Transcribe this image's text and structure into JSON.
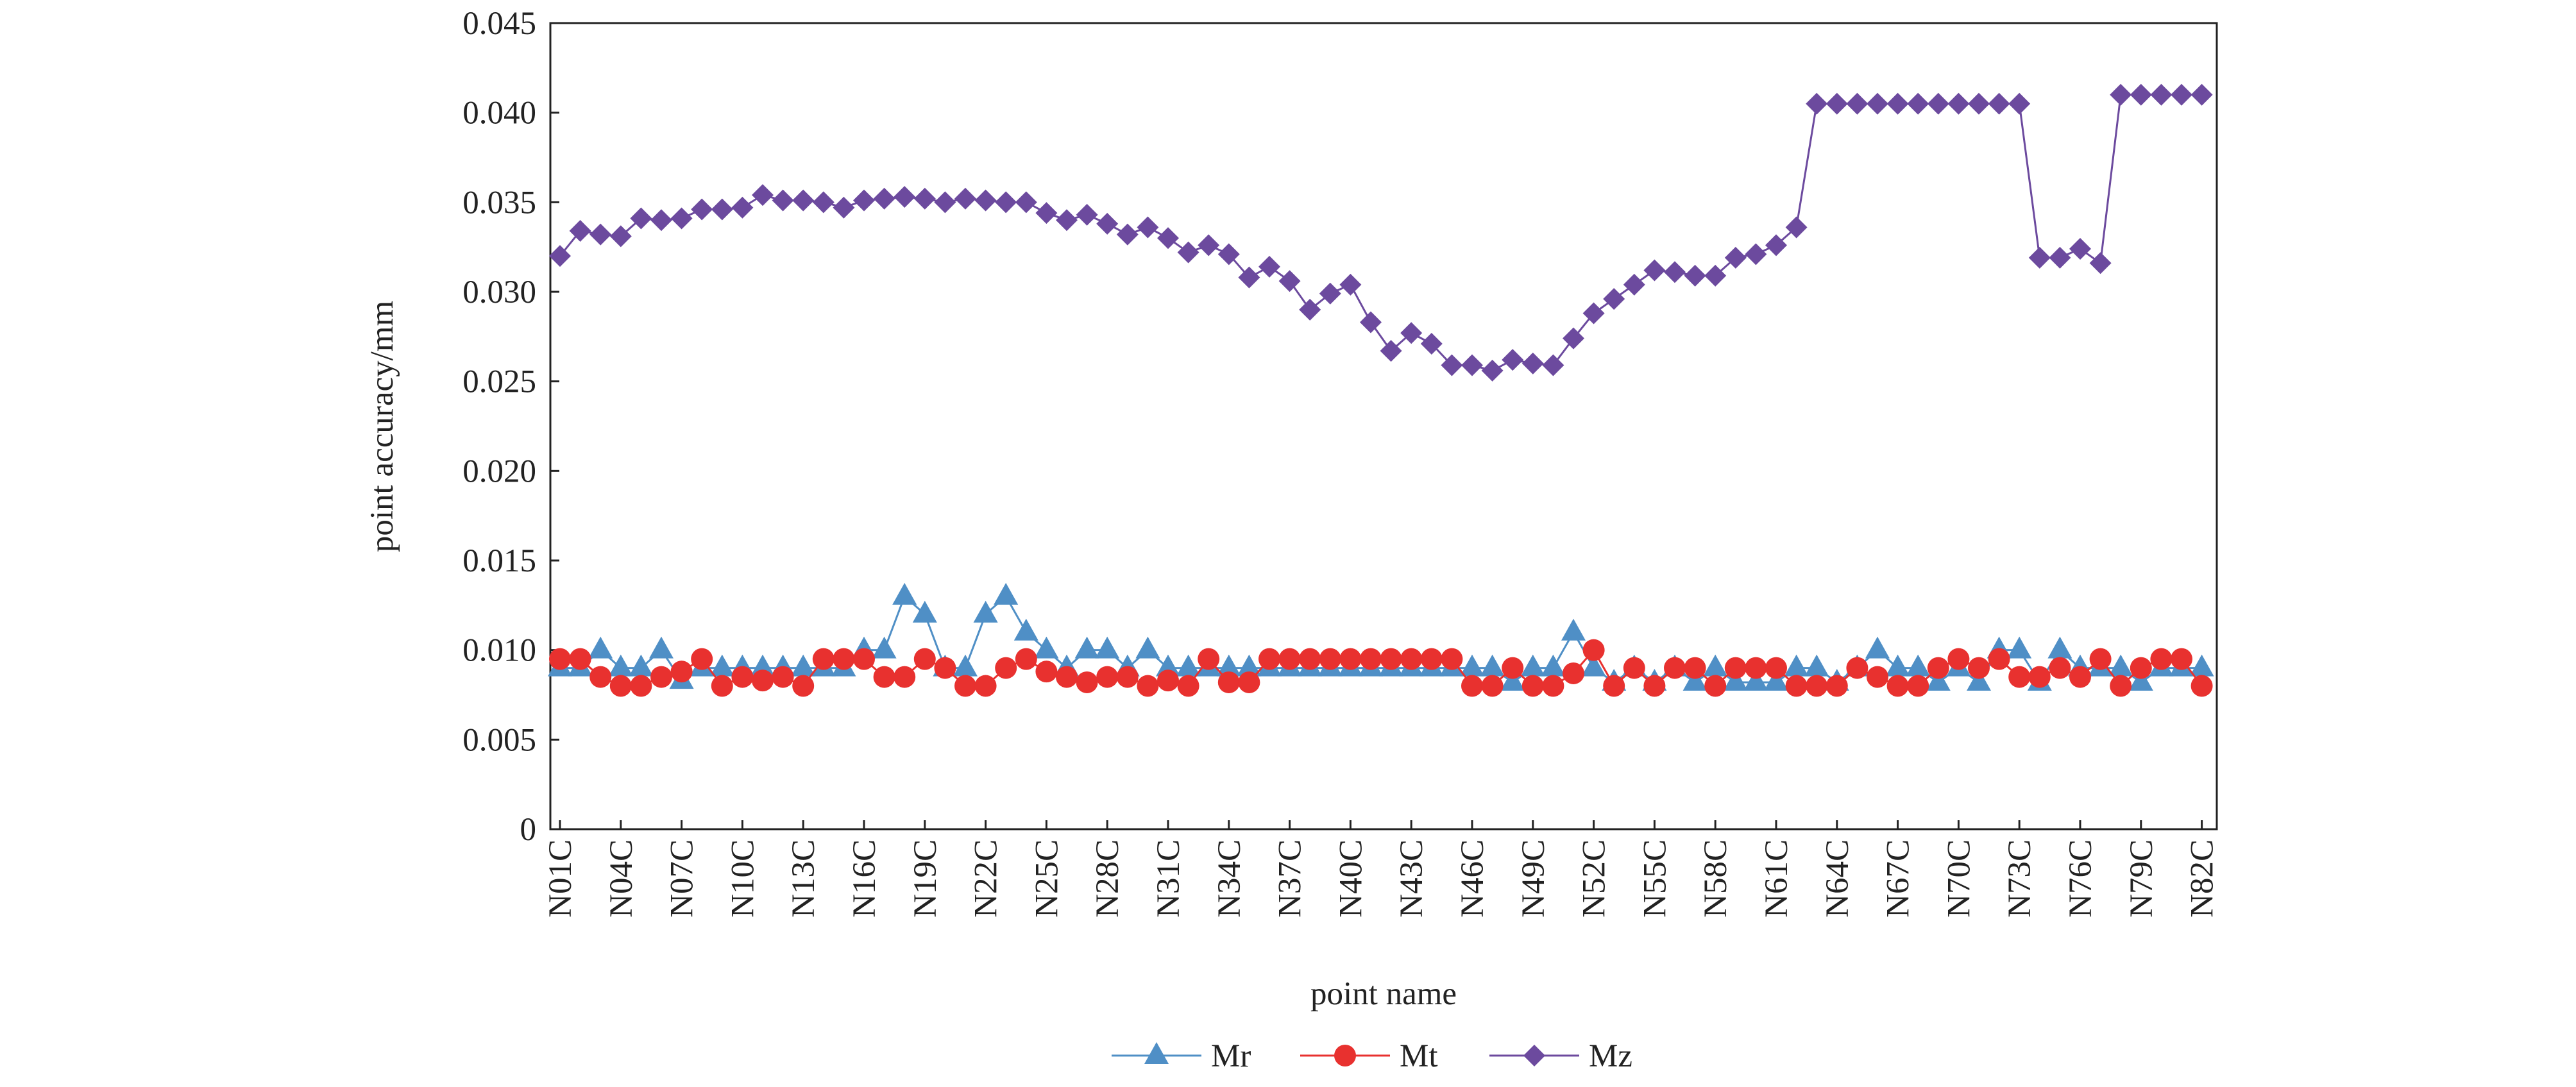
{
  "chart_data": {
    "type": "line",
    "x_label": "point name",
    "y_label": "point accuracy/mm",
    "categories": [
      "N01C",
      null,
      null,
      "N04C",
      null,
      null,
      "N07C",
      null,
      null,
      "N10C",
      null,
      null,
      "N13C",
      null,
      null,
      "N16C",
      null,
      null,
      "N19C",
      null,
      null,
      "N22C",
      null,
      null,
      "N25C",
      null,
      null,
      "N28C",
      null,
      null,
      "N31C",
      null,
      null,
      "N34C",
      null,
      null,
      "N37C",
      null,
      null,
      "N40C",
      null,
      null,
      "N43C",
      null,
      null,
      "N46C",
      null,
      null,
      "N49C",
      null,
      null,
      "N52C",
      null,
      null,
      "N55C",
      null,
      null,
      "N58C",
      null,
      null,
      "N61C",
      null,
      null,
      "N64C",
      null,
      null,
      "N67C",
      null,
      null,
      "N70C",
      null,
      null,
      "N73C",
      null,
      null,
      "N76C",
      null,
      null,
      "N79C",
      null,
      null,
      "N82C"
    ],
    "series": [
      {
        "name": "Mr",
        "color": "#4f8fc6",
        "marker": "triangle",
        "values": [
          0.009,
          0.009,
          0.01,
          0.009,
          0.009,
          0.01,
          0.0083,
          0.009,
          0.009,
          0.009,
          0.009,
          0.009,
          0.009,
          0.009,
          0.009,
          0.01,
          0.01,
          0.013,
          0.012,
          0.009,
          0.009,
          0.012,
          0.013,
          0.011,
          0.01,
          0.009,
          0.01,
          0.01,
          0.009,
          0.01,
          0.009,
          0.009,
          0.009,
          0.009,
          0.009,
          0.009,
          0.009,
          0.009,
          0.009,
          0.009,
          0.009,
          0.009,
          0.009,
          0.009,
          0.009,
          0.009,
          0.009,
          0.0082,
          0.009,
          0.009,
          0.011,
          0.009,
          0.0082,
          0.009,
          0.0082,
          0.009,
          0.0082,
          0.009,
          0.0082,
          0.0082,
          0.0082,
          0.009,
          0.009,
          0.0082,
          0.009,
          0.01,
          0.009,
          0.009,
          0.0082,
          0.009,
          0.0082,
          0.01,
          0.01,
          0.0082,
          0.01,
          0.009,
          0.009,
          0.009,
          0.0082,
          0.009,
          0.009,
          0.009
        ]
      },
      {
        "name": "Mt",
        "color": "#e8312f",
        "marker": "circle",
        "values": [
          0.0095,
          0.0095,
          0.0085,
          0.008,
          0.008,
          0.0085,
          0.0088,
          0.0095,
          0.008,
          0.0085,
          0.0083,
          0.0085,
          0.008,
          0.0095,
          0.0095,
          0.0095,
          0.0085,
          0.0085,
          0.0095,
          0.009,
          0.008,
          0.008,
          0.009,
          0.0095,
          0.0088,
          0.0085,
          0.0082,
          0.0085,
          0.0085,
          0.008,
          0.0083,
          0.008,
          0.0095,
          0.0082,
          0.0082,
          0.0095,
          0.0095,
          0.0095,
          0.0095,
          0.0095,
          0.0095,
          0.0095,
          0.0095,
          0.0095,
          0.0095,
          0.008,
          0.008,
          0.009,
          0.008,
          0.008,
          0.0087,
          0.01,
          0.008,
          0.009,
          0.008,
          0.009,
          0.009,
          0.008,
          0.009,
          0.009,
          0.009,
          0.008,
          0.008,
          0.008,
          0.009,
          0.0085,
          0.008,
          0.008,
          0.009,
          0.0095,
          0.009,
          0.0095,
          0.0085,
          0.0085,
          0.009,
          0.0085,
          0.0095,
          0.008,
          0.009,
          0.0095,
          0.0095,
          0.008
        ]
      },
      {
        "name": "Mz",
        "color": "#6c4a9e",
        "marker": "diamond",
        "values": [
          0.032,
          0.0334,
          0.0332,
          0.0331,
          0.0341,
          0.034,
          0.0341,
          0.0346,
          0.0346,
          0.0347,
          0.0354,
          0.0351,
          0.0351,
          0.035,
          0.0347,
          0.0351,
          0.0352,
          0.0353,
          0.0352,
          0.035,
          0.0352,
          0.0351,
          0.035,
          0.035,
          0.0344,
          0.034,
          0.0343,
          0.0338,
          0.0332,
          0.0336,
          0.033,
          0.0322,
          0.0326,
          0.0321,
          0.0308,
          0.0314,
          0.0306,
          0.029,
          0.0299,
          0.0304,
          0.0283,
          0.0267,
          0.0277,
          0.0271,
          0.0259,
          0.0259,
          0.0256,
          0.0262,
          0.026,
          0.0259,
          0.0274,
          0.0288,
          0.0296,
          0.0304,
          0.0312,
          0.0311,
          0.0309,
          0.0309,
          0.0319,
          0.0321,
          0.0326,
          0.0336,
          0.0405,
          0.0405,
          0.0405,
          0.0405,
          0.0405,
          0.0405,
          0.0405,
          0.0405,
          0.0405,
          0.0405,
          0.0405,
          0.0319,
          0.0319,
          0.0324,
          0.0316,
          0.041,
          0.041,
          0.041,
          0.041,
          0.041
        ]
      }
    ],
    "ylim": [
      0,
      0.045
    ],
    "yticks": [
      0,
      0.005,
      {
        "value": 0.01,
        "label": "0.010"
      },
      0.015,
      {
        "value": 0.02,
        "label": "0.020"
      },
      0.025,
      {
        "value": 0.03,
        "label": "0.030"
      },
      0.035,
      {
        "value": 0.04,
        "label": "0.040"
      },
      0.045
    ],
    "legend": "bottom",
    "grid": false
  }
}
